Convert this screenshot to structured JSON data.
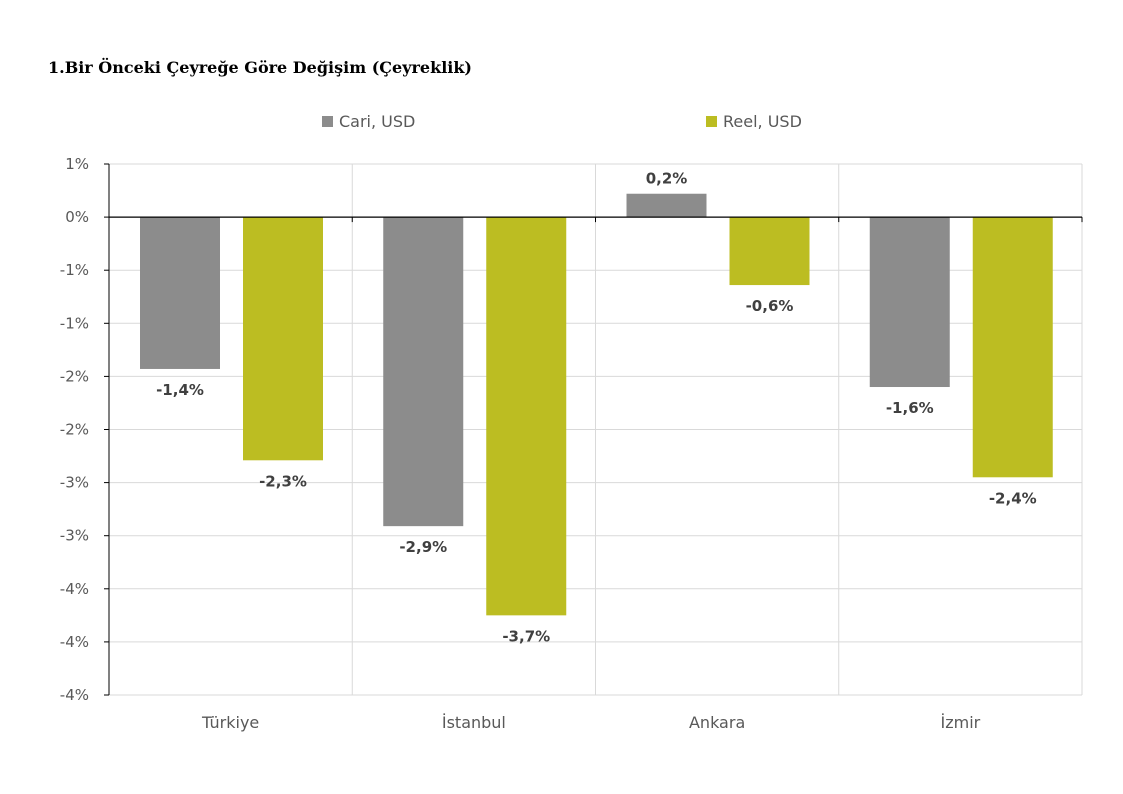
{
  "chart_data": {
    "type": "bar",
    "title": "1.Bir Önceki Çeyreğe Göre Değişim (Çeyreklik)",
    "categories": [
      "Türkiye",
      "İstanbul",
      "Ankara",
      "İzmir"
    ],
    "series": [
      {
        "name": "Cari, USD",
        "color": "#8c8c8c",
        "values": [
          -1.43,
          -2.91,
          0.22,
          -1.6
        ],
        "labels": [
          "-1,4%",
          "-2,9%",
          "0,2%",
          "-1,6%"
        ]
      },
      {
        "name": "Reel, USD",
        "color": "#bcbd22",
        "values": [
          -2.29,
          -3.75,
          -0.64,
          -2.45
        ],
        "labels": [
          "-2,3%",
          "-3,7%",
          "-0,6%",
          "-2,4%"
        ]
      }
    ],
    "ylim": [
      -4.5,
      0.5
    ],
    "y_ticks": [
      {
        "value": 0.5,
        "label": "1%"
      },
      {
        "value": 0,
        "label": "0%"
      },
      {
        "value": -0.5,
        "label": "-1%"
      },
      {
        "value": -1,
        "label": "-1%"
      },
      {
        "value": -1.5,
        "label": "-2%"
      },
      {
        "value": -2,
        "label": "-2%"
      },
      {
        "value": -2.5,
        "label": "-3%"
      },
      {
        "value": -3,
        "label": "-3%"
      },
      {
        "value": -3.5,
        "label": "-4%"
      },
      {
        "value": -4,
        "label": "-4%"
      },
      {
        "value": -4.5,
        "label": "-4%"
      }
    ],
    "xlabel": "",
    "ylabel": "",
    "grid": true,
    "legend_position": "top-center"
  }
}
